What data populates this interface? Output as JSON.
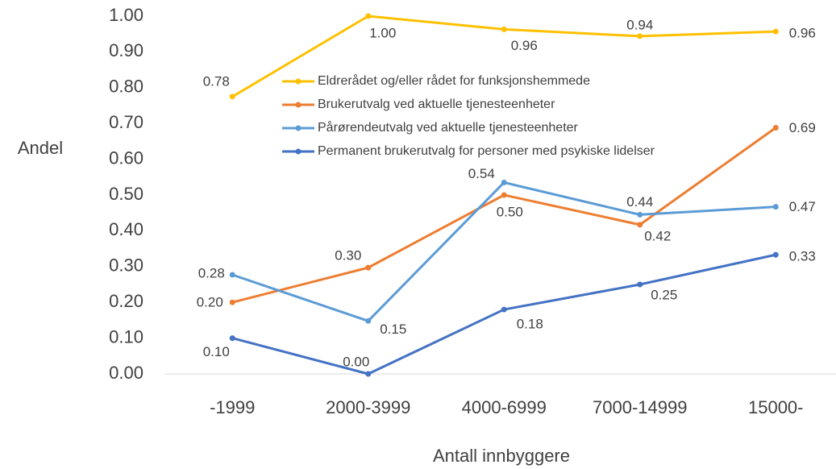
{
  "chart_data": {
    "type": "line",
    "categories": [
      "-1999",
      "2000-3999",
      "4000-6999",
      "7000-14999",
      "15000-"
    ],
    "series": [
      {
        "name": "Eldrerådet og/eller rådet for funksjonshemmede",
        "color": "#ffc000",
        "values": [
          0.775,
          1.0,
          0.963,
          0.944,
          0.957
        ],
        "value_labels": [
          "0.78",
          "1.00",
          "0.96",
          "0.94",
          "0.96"
        ]
      },
      {
        "name": "Brukerutvalg ved aktuelle tjenesteenheter",
        "color": "#ed7d31",
        "values": [
          0.2,
          0.297,
          0.5,
          0.417,
          0.688
        ],
        "value_labels": [
          "0.20",
          "0.30",
          "0.50",
          "0.42",
          "0.69"
        ]
      },
      {
        "name": "Pårørendeutvalg ved aktuelle tjenesteenheter",
        "color": "#5b9bd5",
        "values": [
          0.277,
          0.148,
          0.535,
          0.445,
          0.467
        ],
        "value_labels": [
          "0.28",
          "0.15",
          "0.54",
          "0.44",
          "0.47"
        ]
      },
      {
        "name": "Permanent brukerutvalg for personer med psykiske lidelser",
        "color": "#4472c4",
        "values": [
          0.1,
          0.0,
          0.18,
          0.25,
          0.333
        ],
        "value_labels": [
          "0.10",
          "0.00",
          "0.18",
          "0.25",
          "0.33"
        ]
      }
    ],
    "ylabel": "Andel",
    "xlabel": "Antall innbyggere",
    "ylim": [
      0,
      1
    ],
    "yticks": [
      {
        "value": 0,
        "label": "0.00"
      },
      {
        "value": 0.1,
        "label": "0.10"
      },
      {
        "value": 0.2,
        "label": "0.20"
      },
      {
        "value": 0.3,
        "label": "0.30"
      },
      {
        "value": 0.4,
        "label": "0.40"
      },
      {
        "value": 0.5,
        "label": "0.50"
      },
      {
        "value": 0.6,
        "label": "0.60"
      },
      {
        "value": 0.7,
        "label": "0.70"
      },
      {
        "value": 0.8,
        "label": "0.80"
      },
      {
        "value": 0.9,
        "label": "0.90"
      },
      {
        "value": 1,
        "label": "1.00"
      }
    ],
    "grid": false
  }
}
